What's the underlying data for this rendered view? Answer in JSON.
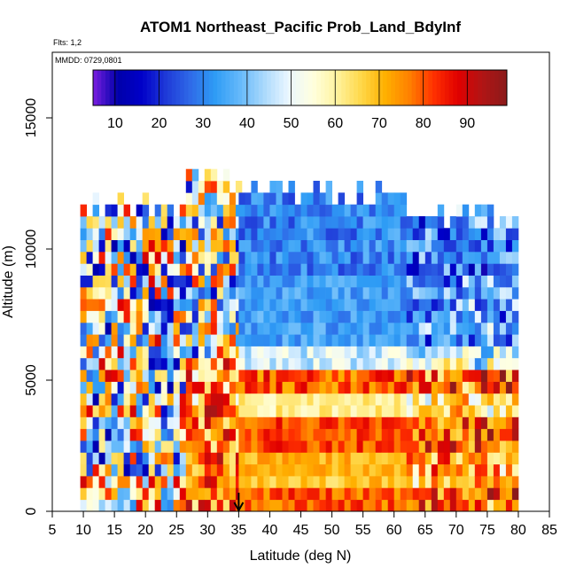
{
  "chart_data": {
    "type": "heatmap",
    "title": "ATOM1 Northeast_Pacific Prob_Land_BdyInf",
    "flights_note": "Flts: 1,2",
    "date_note": "MMDD: 0729,0801",
    "xlabel": "Latitude (deg N)",
    "ylabel": "Altitude (m)",
    "xlim": [
      5,
      85
    ],
    "ylim": [
      0,
      17500
    ],
    "x_ticks": [
      "5",
      "10",
      "15",
      "20",
      "25",
      "30",
      "35",
      "40",
      "45",
      "50",
      "55",
      "60",
      "65",
      "70",
      "75",
      "80",
      "85"
    ],
    "y_ticks": [
      "0",
      "5000",
      "10000",
      "15000"
    ],
    "colorbar": {
      "range": [
        5,
        99
      ],
      "ticks": [
        "10",
        "20",
        "30",
        "40",
        "50",
        "60",
        "70",
        "80",
        "90"
      ],
      "colors": [
        "#7a1fe0",
        "#0000aa",
        "#0000c8",
        "#1f3ad8",
        "#2f6ae8",
        "#2e9cf5",
        "#63b8fa",
        "#a8d8fc",
        "#e9f6ff",
        "#ffffe0",
        "#fff3a0",
        "#ffd84a",
        "#ffb000",
        "#ff8000",
        "#ff3000",
        "#e00000",
        "#b01515",
        "#8b1a1a"
      ]
    },
    "marker_latitude": 35,
    "row_height_m": 450,
    "profiles": [
      {
        "lat_min": 9.5,
        "lat_max": 26.5,
        "alt_max": 12000,
        "pattern": "noisy"
      },
      {
        "lat_min": 26.5,
        "lat_max": 35,
        "alt_max": 13000,
        "pattern": "mixed"
      },
      {
        "lat_min": 35,
        "lat_max": 62,
        "alt_max": 12300,
        "pattern": "stratified"
      },
      {
        "lat_min": 62,
        "lat_max": 80,
        "alt_max": 11500,
        "pattern": "stratified_noisy"
      }
    ],
    "grid": false
  }
}
